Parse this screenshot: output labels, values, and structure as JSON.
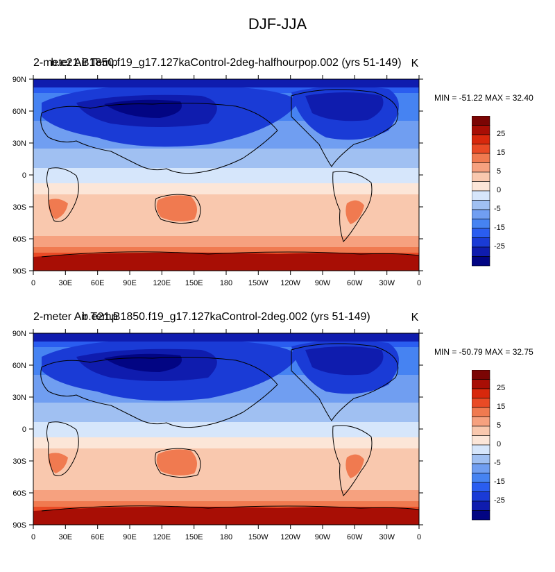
{
  "title": "DJF-JJA",
  "colors": {
    "bins": [
      "#020583",
      "#0f1cae",
      "#1a3bd6",
      "#2a5df0",
      "#4683f2",
      "#709ef1",
      "#a0c0f2",
      "#d6e6fb",
      "#fce6d8",
      "#f9c8ae",
      "#f6a17f",
      "#f07a50",
      "#e94a25",
      "#d8280c",
      "#a80e05",
      "#7b0504"
    ]
  },
  "colorbar": {
    "labels": [
      "25",
      "15",
      "5",
      "0",
      "-5",
      "-15",
      "-25"
    ]
  },
  "lat_labels": [
    "90N",
    "60N",
    "30N",
    "0",
    "30S",
    "60S",
    "90S"
  ],
  "lon_labels": [
    "0",
    "30E",
    "60E",
    "90E",
    "120E",
    "150E",
    "180",
    "150W",
    "120W",
    "90W",
    "60W",
    "30W",
    "0"
  ],
  "panels": [
    {
      "left_label": "2-meter Air Temp",
      "center_label": "b.e21.B1850.f19_g17.127kaControl-2deg-halfhourpop.002 (yrs 51-149)",
      "units": "K",
      "minmax": "MIN = -51.22 MAX =  32.40"
    },
    {
      "left_label": "2-meter Air Temp",
      "center_label": "b.e21.B1850.f19_g17.127kaControl-2deg.002 (yrs 51-149)",
      "units": "K",
      "minmax": "MIN = -50.79 MAX =  32.75"
    }
  ]
}
